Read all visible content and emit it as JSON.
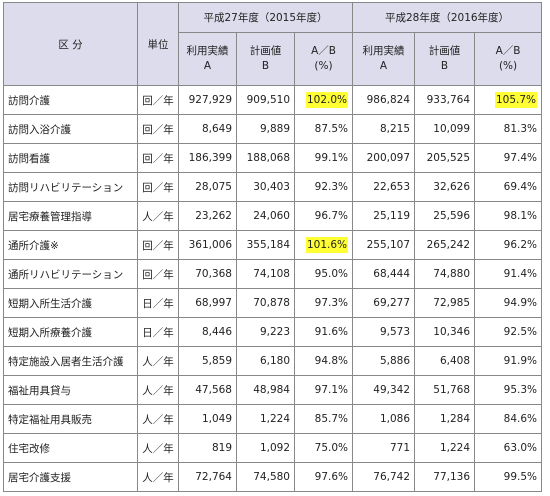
{
  "table": {
    "header": {
      "category": "区 分",
      "unit": "単位",
      "years": [
        "平成27年度（2015年度）",
        "平成28年度（2016年度）"
      ],
      "sub": [
        "利用実績\nA",
        "計画値\nB",
        "A／B\n(%)",
        "利用実績\nA",
        "計画値\nB",
        "A／B\n(%)"
      ]
    },
    "rows": [
      [
        "訪問介護",
        "回／年",
        "927,929",
        "909,510",
        "102.0%",
        "986,824",
        "933,764",
        "105.7%"
      ],
      [
        "訪問入浴介護",
        "回／年",
        "8,649",
        "9,889",
        "87.5%",
        "8,215",
        "10,099",
        "81.3%"
      ],
      [
        "訪問看護",
        "回／年",
        "186,399",
        "188,068",
        "99.1%",
        "200,097",
        "205,525",
        "97.4%"
      ],
      [
        "訪問リハビリテーション",
        "回／年",
        "28,075",
        "30,403",
        "92.3%",
        "22,653",
        "32,626",
        "69.4%"
      ],
      [
        "居宅療養管理指導",
        "人／年",
        "23,262",
        "24,060",
        "96.7%",
        "25,119",
        "25,596",
        "98.1%"
      ],
      [
        "通所介護※",
        "回／年",
        "361,006",
        "355,184",
        "101.6%",
        "255,107",
        "265,242",
        "96.2%"
      ],
      [
        "通所リハビリテーション",
        "回／年",
        "70,368",
        "74,108",
        "95.0%",
        "68,444",
        "74,880",
        "91.4%"
      ],
      [
        "短期入所生活介護",
        "日／年",
        "68,997",
        "70,878",
        "97.3%",
        "69,277",
        "72,985",
        "94.9%"
      ],
      [
        "短期入所療養介護",
        "日／年",
        "8,446",
        "9,223",
        "91.6%",
        "9,573",
        "10,346",
        "92.5%"
      ],
      [
        "特定施設入居者生活介護",
        "人／年",
        "5,859",
        "6,180",
        "94.8%",
        "5,886",
        "6,408",
        "91.9%"
      ],
      [
        "福祉用具貸与",
        "人／年",
        "47,568",
        "48,984",
        "97.1%",
        "49,342",
        "51,768",
        "95.3%"
      ],
      [
        "特定福祉用具販売",
        "人／年",
        "1,049",
        "1,224",
        "85.7%",
        "1,086",
        "1,284",
        "84.6%"
      ],
      [
        "住宅改修",
        "人／年",
        "819",
        "1,092",
        "75.0%",
        "771",
        "1,224",
        "63.0%"
      ],
      [
        "居宅介護支援",
        "人／年",
        "72,764",
        "74,580",
        "97.6%",
        "76,742",
        "77,136",
        "99.5%"
      ]
    ],
    "highlight_color": "#ffff33",
    "highlighted_cells": [
      "table.rows.0.4",
      "table.rows.0.7",
      "table.rows.5.4"
    ]
  }
}
